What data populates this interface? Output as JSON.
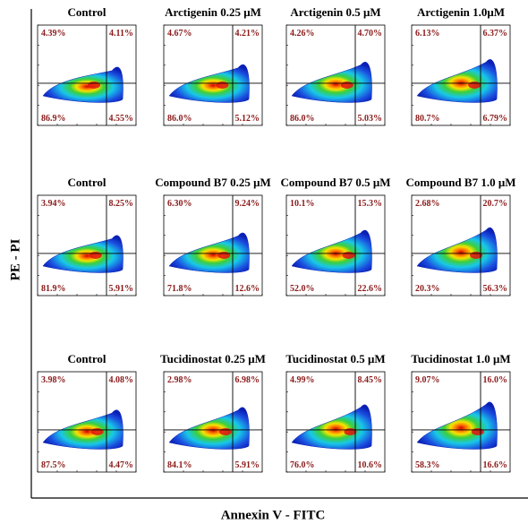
{
  "y_label": "PE - PI",
  "x_label": "Annexin V - FITC",
  "panels": [
    {
      "title": "Control",
      "ul": "4.39%",
      "ur": "4.11%",
      "ll": "86.9%",
      "lr": "4.55%"
    },
    {
      "title": "Arctigenin 0.25 μM",
      "ul": "4.67%",
      "ur": "4.21%",
      "ll": "86.0%",
      "lr": "5.12%"
    },
    {
      "title": "Arctigenin 0.5 μM",
      "ul": "4.26%",
      "ur": "4.70%",
      "ll": "86.0%",
      "lr": "5.03%"
    },
    {
      "title": "Arctigenin 1.0μM",
      "ul": "6.13%",
      "ur": "6.37%",
      "ll": "80.7%",
      "lr": "6.79%"
    },
    {
      "title": "Control",
      "ul": "3.94%",
      "ur": "8.25%",
      "ll": "81.9%",
      "lr": "5.91%"
    },
    {
      "title": "Compound B7 0.25 μM",
      "ul": "6.30%",
      "ur": "9.24%",
      "ll": "71.8%",
      "lr": "12.6%"
    },
    {
      "title": "Compound B7 0.5 μM",
      "ul": "10.1%",
      "ur": "15.3%",
      "ll": "52.0%",
      "lr": "22.6%"
    },
    {
      "title": "Compound B7 1.0 μM",
      "ul": "2.68%",
      "ur": "20.7%",
      "ll": "20.3%",
      "lr": "56.3%"
    },
    {
      "title": "Control",
      "ul": "3.98%",
      "ur": "4.08%",
      "ll": "87.5%",
      "lr": "4.47%"
    },
    {
      "title": "Tucidinostat 0.25 μM",
      "ul": "2.98%",
      "ur": "6.98%",
      "ll": "84.1%",
      "lr": "5.91%"
    },
    {
      "title": "Tucidinostat 0.5 μM",
      "ul": "4.99%",
      "ur": "8.45%",
      "ll": "76.0%",
      "lr": "10.6%"
    },
    {
      "title": "Tucidinostat 1.0 μM",
      "ul": "9.07%",
      "ur": "16.0%",
      "ll": "58.3%",
      "lr": "16.6%"
    }
  ]
}
